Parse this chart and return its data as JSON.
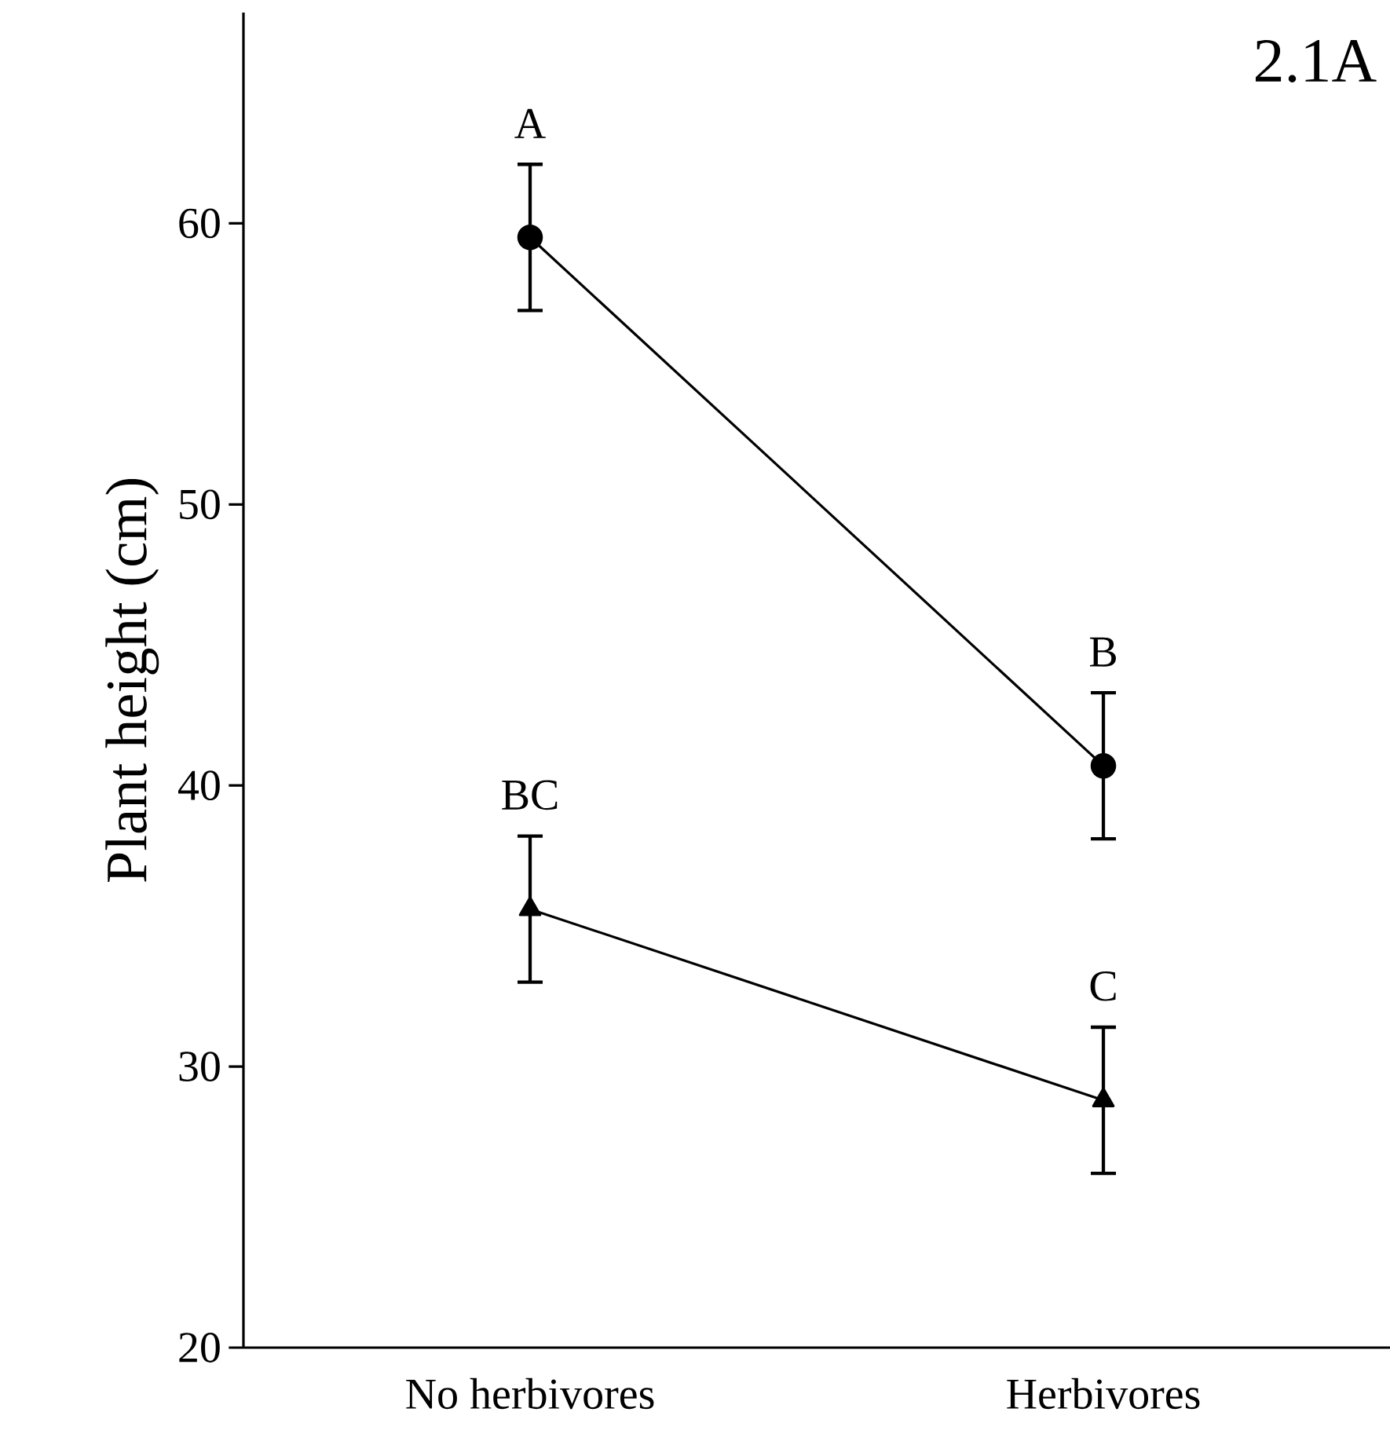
{
  "chart_data": {
    "type": "line",
    "ylabel": "Plant height (cm)",
    "categories": [
      "No herbivores",
      "Herbivores"
    ],
    "series": [
      {
        "color": "#000000",
        "marker": "circle",
        "values": [
          59.5,
          40.7
        ],
        "errors": [
          2.6,
          2.6
        ]
      },
      {
        "color": "#000000",
        "marker": "triangle",
        "values": [
          35.6,
          28.8
        ],
        "errors": [
          2.6,
          2.6
        ]
      }
    ],
    "ylim": [
      20,
      67.5
    ],
    "yticks": [
      20,
      30,
      40,
      50,
      60
    ],
    "annotations": [
      "A",
      "B",
      "BC",
      "C",
      "2.1A"
    ]
  }
}
